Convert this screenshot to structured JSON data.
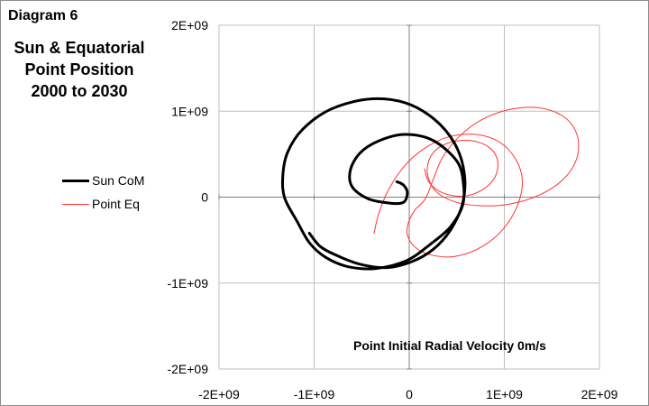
{
  "diagram_label": "Diagram 6",
  "colors": {
    "sun": "#000000",
    "point": "#ff3333",
    "grid": "#bfbfbf",
    "axis": "#808080"
  },
  "chart_data": {
    "type": "line",
    "title": "Sun & Equatorial\nPoint Position\n2000 to 2030",
    "annotation": "Point Initial Radial Velocity 0m/s",
    "xlabel": "",
    "ylabel": "",
    "xlim": [
      -2000000000,
      2000000000
    ],
    "ylim": [
      -2000000000,
      2000000000
    ],
    "x_tick_values": [
      -2000000000,
      -1000000000,
      0,
      1000000000,
      2000000000
    ],
    "x_tick_labels": [
      "-2E+09",
      "-1E+09",
      "0",
      "1E+09",
      "2E+09"
    ],
    "y_tick_values": [
      -2000000000,
      -1000000000,
      0,
      1000000000,
      2000000000
    ],
    "y_tick_labels": [
      "-2E+09",
      "-1E+09",
      "0",
      "1E+09",
      "2E+09"
    ],
    "grid": true,
    "legend_position": "left",
    "series": [
      {
        "name": "Sun CoM",
        "points": [
          [
            -130000000,
            180000000
          ],
          [
            -60000000,
            140000000
          ],
          [
            -20000000,
            50000000
          ],
          [
            -60000000,
            -60000000
          ],
          [
            -200000000,
            -70000000
          ],
          [
            -430000000,
            -20000000
          ],
          [
            -600000000,
            120000000
          ],
          [
            -620000000,
            310000000
          ],
          [
            -520000000,
            510000000
          ],
          [
            -330000000,
            650000000
          ],
          [
            -50000000,
            730000000
          ],
          [
            250000000,
            660000000
          ],
          [
            500000000,
            420000000
          ],
          [
            570000000,
            160000000
          ],
          [
            560000000,
            -100000000
          ],
          [
            430000000,
            -350000000
          ],
          [
            220000000,
            -550000000
          ],
          [
            -30000000,
            -740000000
          ],
          [
            -350000000,
            -830000000
          ],
          [
            -640000000,
            -810000000
          ],
          [
            -880000000,
            -700000000
          ],
          [
            -1050000000,
            -530000000
          ],
          [
            -1180000000,
            -280000000
          ],
          [
            -1310000000,
            -10000000
          ],
          [
            -1330000000,
            240000000
          ],
          [
            -1280000000,
            520000000
          ],
          [
            -1120000000,
            790000000
          ],
          [
            -830000000,
            1020000000
          ],
          [
            -430000000,
            1140000000
          ],
          [
            -50000000,
            1100000000
          ],
          [
            260000000,
            910000000
          ],
          [
            480000000,
            620000000
          ],
          [
            580000000,
            270000000
          ],
          [
            560000000,
            -80000000
          ],
          [
            430000000,
            -390000000
          ],
          [
            250000000,
            -610000000
          ],
          [
            30000000,
            -750000000
          ],
          [
            -230000000,
            -820000000
          ],
          [
            -520000000,
            -780000000
          ],
          [
            -780000000,
            -670000000
          ],
          [
            -940000000,
            -570000000
          ],
          [
            -1050000000,
            -420000000
          ]
        ]
      },
      {
        "name": "Point Eq",
        "points": [
          [
            -370000000,
            -420000000
          ],
          [
            -320000000,
            -190000000
          ],
          [
            -220000000,
            80000000
          ],
          [
            -60000000,
            350000000
          ],
          [
            150000000,
            560000000
          ],
          [
            410000000,
            700000000
          ],
          [
            700000000,
            730000000
          ],
          [
            950000000,
            640000000
          ],
          [
            1120000000,
            440000000
          ],
          [
            1190000000,
            190000000
          ],
          [
            1140000000,
            -90000000
          ],
          [
            990000000,
            -370000000
          ],
          [
            760000000,
            -580000000
          ],
          [
            480000000,
            -690000000
          ],
          [
            220000000,
            -670000000
          ],
          [
            60000000,
            -580000000
          ],
          [
            -20000000,
            -440000000
          ],
          [
            -10000000,
            -300000000
          ],
          [
            60000000,
            -150000000
          ],
          [
            170000000,
            -20000000
          ],
          [
            250000000,
            200000000
          ],
          [
            350000000,
            460000000
          ],
          [
            520000000,
            700000000
          ],
          [
            760000000,
            900000000
          ],
          [
            1060000000,
            1020000000
          ],
          [
            1360000000,
            1040000000
          ],
          [
            1620000000,
            940000000
          ],
          [
            1760000000,
            740000000
          ],
          [
            1770000000,
            480000000
          ],
          [
            1640000000,
            230000000
          ],
          [
            1380000000,
            30000000
          ],
          [
            1060000000,
            -80000000
          ],
          [
            750000000,
            -100000000
          ],
          [
            470000000,
            -50000000
          ],
          [
            270000000,
            80000000
          ],
          [
            190000000,
            290000000
          ],
          [
            240000000,
            500000000
          ],
          [
            410000000,
            630000000
          ],
          [
            640000000,
            660000000
          ],
          [
            840000000,
            580000000
          ],
          [
            930000000,
            420000000
          ],
          [
            900000000,
            230000000
          ],
          [
            760000000,
            80000000
          ],
          [
            560000000,
            10000000
          ],
          [
            350000000,
            50000000
          ],
          [
            210000000,
            170000000
          ],
          [
            160000000,
            330000000
          ]
        ]
      }
    ]
  }
}
